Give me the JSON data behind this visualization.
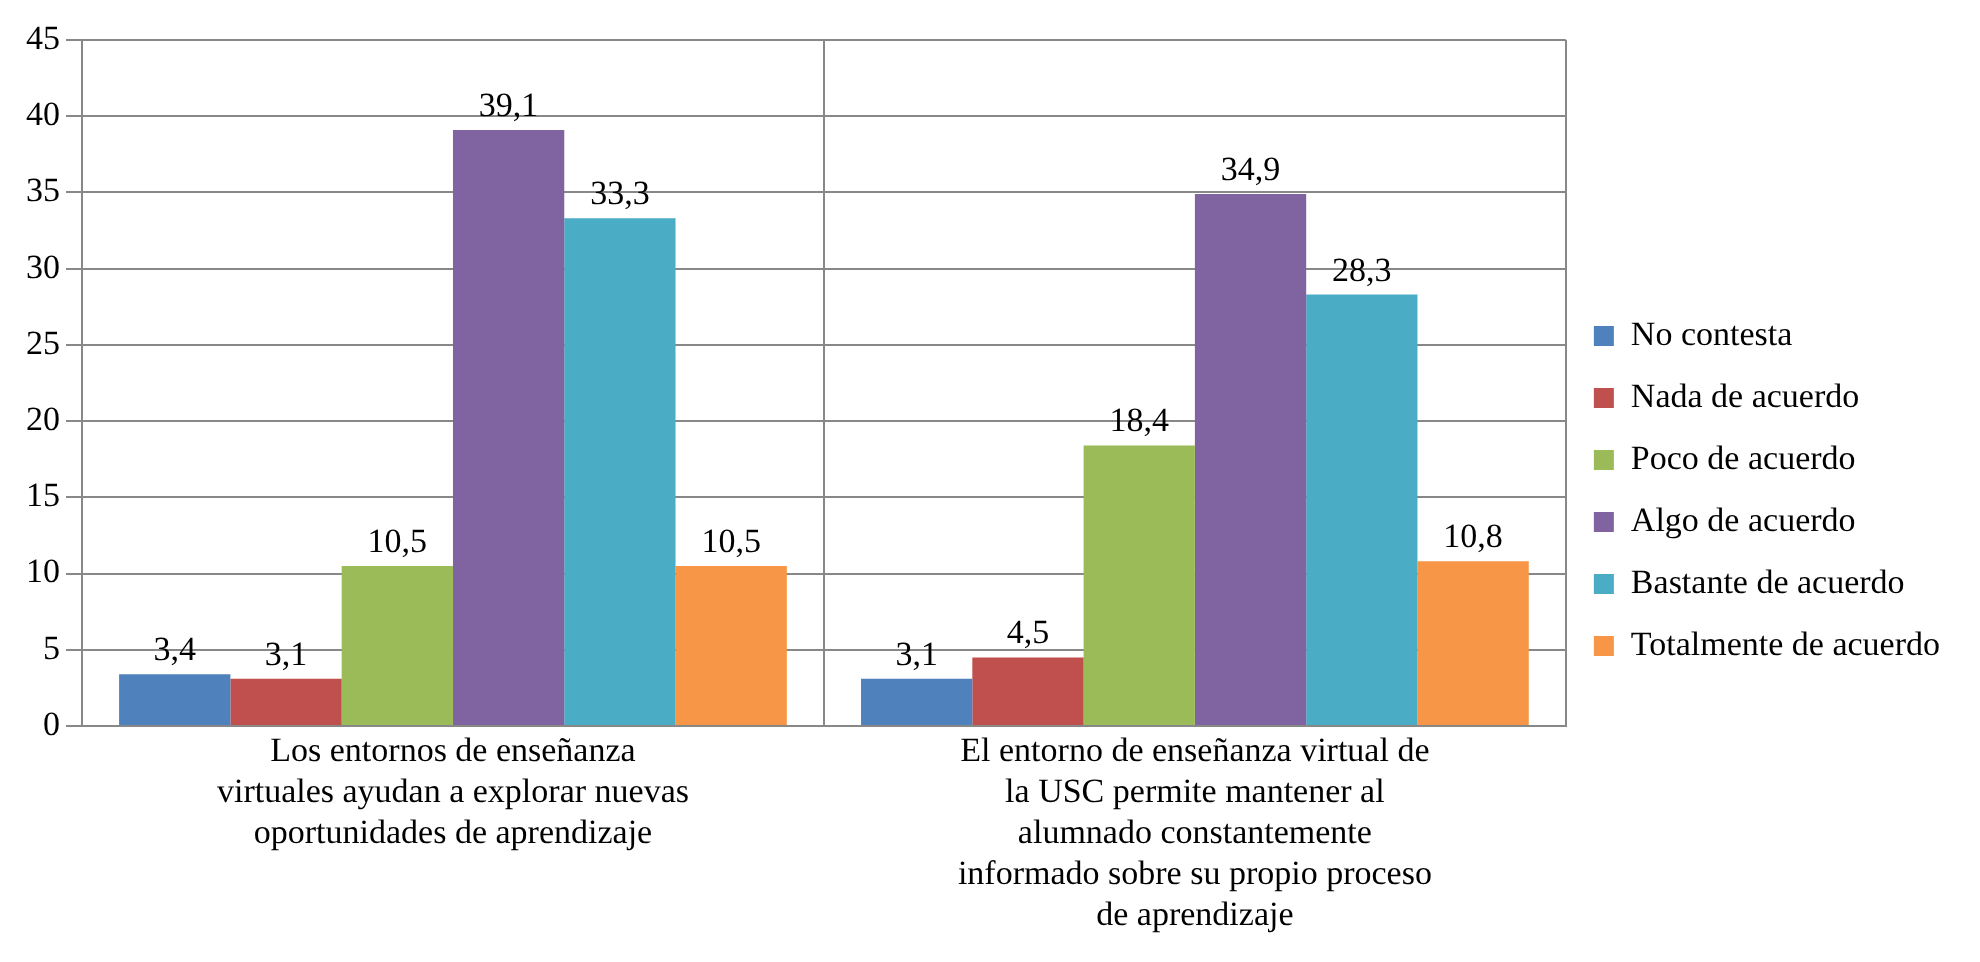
{
  "chart_data": {
    "type": "bar",
    "categories": [
      "Los entornos de enseñanza virtuales ayudan a explorar nuevas oportunidades de aprendizaje",
      "El entorno de enseñanza virtual de la USC permite mantener al alumnado constantemente informado sobre su propio proceso de aprendizaje"
    ],
    "series": [
      {
        "name": "No contesta",
        "color": "#4f81bd",
        "values": [
          3.4,
          3.1
        ],
        "value_labels": [
          "3,4",
          "3,1"
        ]
      },
      {
        "name": "Nada de acuerdo",
        "color": "#c0504d",
        "values": [
          3.1,
          4.5
        ],
        "value_labels": [
          "3,1",
          "4,5"
        ]
      },
      {
        "name": "Poco de acuerdo",
        "color": "#9bbb59",
        "values": [
          10.5,
          18.4
        ],
        "value_labels": [
          "10,5",
          "18,4"
        ]
      },
      {
        "name": "Algo de acuerdo",
        "color": "#8064a2",
        "values": [
          39.1,
          34.9
        ],
        "value_labels": [
          "39,1",
          "34,9"
        ]
      },
      {
        "name": "Bastante de acuerdo",
        "color": "#4bacc6",
        "values": [
          33.3,
          28.3
        ],
        "value_labels": [
          "33,3",
          "28,3"
        ]
      },
      {
        "name": "Totalmente de acuerdo",
        "color": "#f79646",
        "values": [
          10.5,
          10.8
        ],
        "value_labels": [
          "10,5",
          "10,8"
        ]
      }
    ],
    "ylim": [
      0,
      45
    ],
    "yticks": [
      0,
      5,
      10,
      15,
      20,
      25,
      30,
      35,
      40,
      45
    ],
    "grid": true,
    "legend": "right"
  }
}
